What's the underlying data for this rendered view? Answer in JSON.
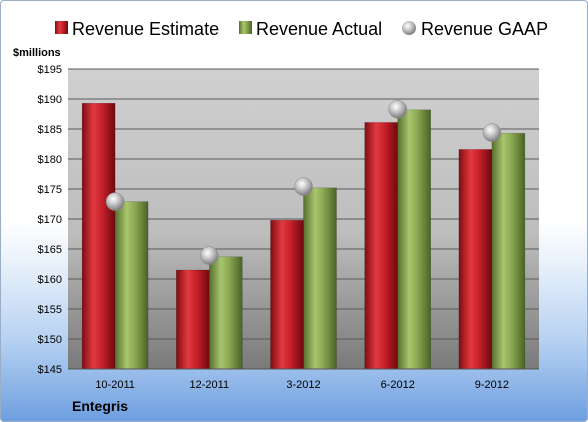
{
  "chart_data": {
    "type": "bar",
    "title": "",
    "ylabel": "$millions",
    "xlabel": "",
    "categories": [
      "10-2011",
      "12-2011",
      "3-2012",
      "6-2012",
      "9-2012"
    ],
    "series": [
      {
        "name": "Revenue Estimate",
        "kind": "bar",
        "color": "#c8202a",
        "values": [
          189.3,
          161.5,
          169.8,
          186.1,
          181.6
        ]
      },
      {
        "name": "Revenue Actual",
        "kind": "bar",
        "color": "#8aa852",
        "values": [
          172.9,
          163.7,
          175.2,
          188.2,
          184.3
        ]
      },
      {
        "name": "Revenue GAAP",
        "kind": "point",
        "color": "#b5b5b5",
        "values": [
          172.9,
          163.9,
          175.4,
          188.3,
          184.4
        ]
      }
    ],
    "ylim": [
      145,
      195
    ],
    "yticks": [
      "$145",
      "$150",
      "$155",
      "$160",
      "$165",
      "$170",
      "$175",
      "$180",
      "$185",
      "$190",
      "$195"
    ],
    "grid": true,
    "legend_position": "top"
  },
  "footer": {
    "company": "Entegris"
  }
}
